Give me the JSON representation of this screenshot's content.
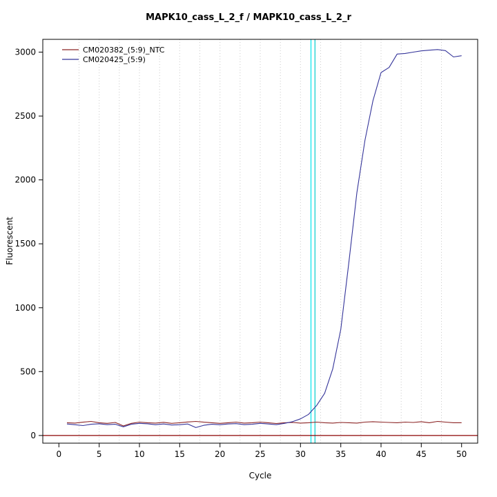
{
  "chart_data": {
    "type": "line",
    "title": "MAPK10_cass_L_2_f / MAPK10_cass_L_2_r",
    "xlabel": "Cycle",
    "ylabel": "Fluorescent",
    "xlim": [
      0,
      50
    ],
    "ylim": [
      0,
      3100
    ],
    "xticks": [
      0,
      5,
      10,
      15,
      20,
      25,
      30,
      35,
      40,
      45,
      50
    ],
    "yticks": [
      0,
      500,
      1000,
      1500,
      2000,
      2500,
      3000
    ],
    "grid": {
      "vertical_step": 2.5,
      "style": "dotted",
      "color": "#c9c9c9"
    },
    "threshold_lines": [
      {
        "x": 31.3,
        "color": "#00E5EE"
      },
      {
        "x": 31.8,
        "color": "#00CDCD"
      }
    ],
    "baseline": {
      "y": 0,
      "color": "#8B0000"
    },
    "legend_position": "top-left",
    "x": [
      1,
      2,
      3,
      4,
      5,
      6,
      7,
      8,
      9,
      10,
      11,
      12,
      13,
      14,
      15,
      16,
      17,
      18,
      19,
      20,
      21,
      22,
      23,
      24,
      25,
      26,
      27,
      28,
      29,
      30,
      31,
      32,
      33,
      34,
      35,
      36,
      37,
      38,
      39,
      40,
      41,
      42,
      43,
      44,
      45,
      46,
      47,
      48,
      49,
      50
    ],
    "series": [
      {
        "name": "CM020382_(5:9)_NTC",
        "color": "#8B2323",
        "values": [
          100,
          97,
          104,
          110,
          100,
          95,
          102,
          75,
          95,
          105,
          100,
          97,
          103,
          95,
          100,
          106,
          110,
          104,
          100,
          95,
          100,
          105,
          97,
          100,
          105,
          100,
          94,
          100,
          102,
          97,
          100,
          105,
          100,
          97,
          102,
          100,
          97,
          105,
          108,
          105,
          102,
          100,
          105,
          102,
          108,
          100,
          110,
          105,
          100,
          100
        ]
      },
      {
        "name": "CM020425_(5:9)",
        "color": "#333399",
        "values": [
          90,
          84,
          78,
          88,
          92,
          85,
          88,
          68,
          88,
          95,
          92,
          84,
          90,
          82,
          84,
          90,
          62,
          80,
          88,
          84,
          90,
          93,
          85,
          88,
          95,
          90,
          85,
          95,
          108,
          130,
          165,
          235,
          330,
          520,
          830,
          1350,
          1900,
          2310,
          2620,
          2840,
          2880,
          2985,
          2990,
          3000,
          3010,
          3015,
          3020,
          3012,
          2962,
          2972
        ]
      }
    ]
  }
}
